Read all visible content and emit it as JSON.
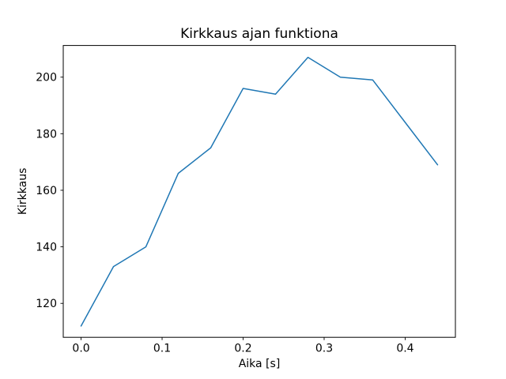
{
  "figure": {
    "background": "#ffffff"
  },
  "chart_data": {
    "type": "line",
    "title": "Kirkkaus ajan funktiona",
    "xlabel": "Aika [s]",
    "ylabel": "Kirkkaus",
    "x": [
      0.0,
      0.04,
      0.08,
      0.12,
      0.16,
      0.2,
      0.24,
      0.28,
      0.32,
      0.36,
      0.4,
      0.44
    ],
    "y": [
      112,
      133,
      140,
      166,
      175,
      196,
      194,
      207,
      200,
      199,
      184,
      169
    ],
    "xlim": [
      -0.022,
      0.462
    ],
    "ylim": [
      108.0,
      211.2
    ],
    "xticks": [
      0.0,
      0.1,
      0.2,
      0.3,
      0.4
    ],
    "xtick_labels": [
      "0.0",
      "0.1",
      "0.2",
      "0.3",
      "0.4"
    ],
    "yticks": [
      120,
      140,
      160,
      180,
      200
    ],
    "ytick_labels": [
      "120",
      "140",
      "160",
      "180",
      "200"
    ],
    "line_color": "#1f77b4",
    "line_width": 1.5,
    "axis_color": "#000000",
    "background": "#ffffff",
    "grid": false,
    "legend": "none"
  }
}
